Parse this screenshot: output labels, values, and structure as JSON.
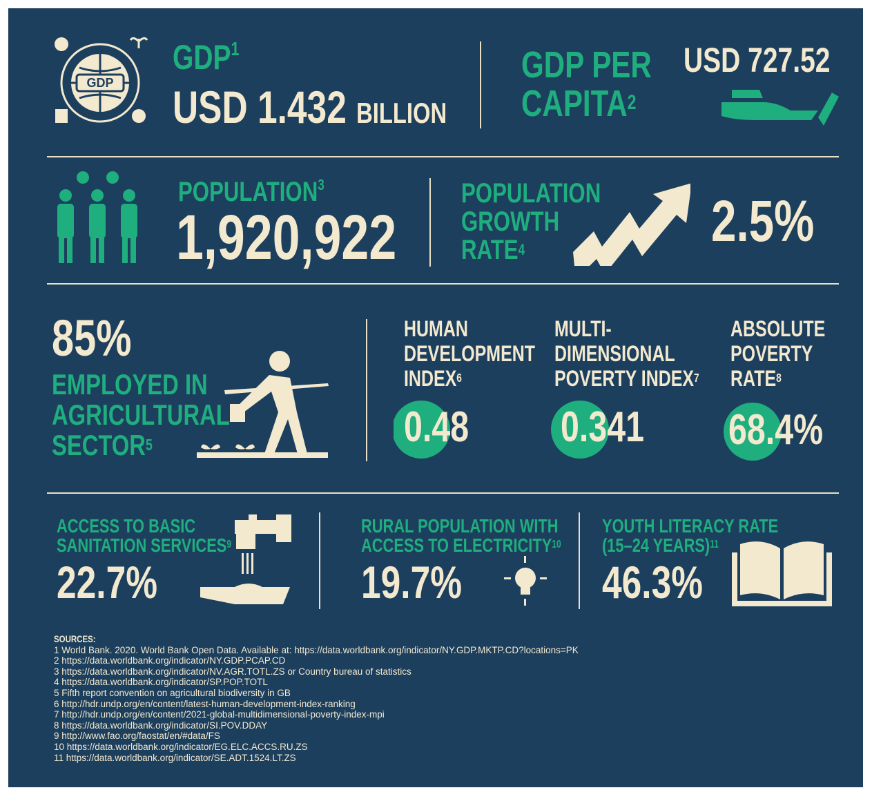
{
  "gdp": {
    "label": "GDP",
    "note": "1",
    "value": "USD 1.432",
    "unit": "BILLION"
  },
  "gdp_per_capita": {
    "label": [
      "GDP PER",
      "CAPITA"
    ],
    "note": "2",
    "value": "USD 727.52"
  },
  "population": {
    "label": "POPULATION",
    "note": "3",
    "value": "1,920,922"
  },
  "population_growth": {
    "label": [
      "POPULATION",
      "GROWTH",
      "RATE"
    ],
    "note": "4",
    "value": "2.5%"
  },
  "agriculture": {
    "value": "85%",
    "label": [
      "EMPLOYED IN",
      "AGRICULTURAL",
      "SECTOR"
    ],
    "note": "5"
  },
  "hdi": {
    "label": [
      "HUMAN",
      "DEVELOPMENT",
      "INDEX"
    ],
    "note": "6",
    "value": "0.48"
  },
  "mpi": {
    "label": [
      "MULTI-",
      "DIMENSIONAL",
      "POVERTY INDEX"
    ],
    "note": "7",
    "value": "0.341"
  },
  "poverty": {
    "label": [
      "ABSOLUTE",
      "POVERTY",
      "RATE"
    ],
    "note": "8",
    "value": "68.4%"
  },
  "sanitation": {
    "label": [
      "ACCESS TO BASIC",
      "SANITATION SERVICES"
    ],
    "note": "9",
    "value": "22.7%"
  },
  "electricity": {
    "label": [
      "RURAL POPULATION WITH",
      "ACCESS TO ELECTRICITY"
    ],
    "note": "10",
    "value": "19.7%"
  },
  "literacy": {
    "label": [
      "YOUTH LITERACY RATE",
      "(15–24 YEARS)"
    ],
    "note": "11",
    "value": "46.3%"
  },
  "sources": {
    "title": "SOURCES:",
    "items": [
      "1 World Bank. 2020. World Bank Open Data. Available at: https://data.worldbank.org/indicator/NY.GDP.MKTP.CD?locations=PK",
      "2 https://data.worldbank.org/indicator/NY.GDP.PCAP.CD",
      "3 https://data.worldbank.org/indicator/NV.AGR.TOTL.ZS or Country bureau of statistics",
      "4 https://data.worldbank.org/indicator/SP.POP.TOTL",
      "5 Fifth report convention on agricultural biodiversity in GB",
      "6 http://hdr.undp.org/en/content/latest-human-development-index-ranking",
      "7 http://hdr.undp.org/en/content/2021-global-multidimensional-poverty-index-mpi",
      "8 https://data.worldbank.org/indicator/SI.POV.DDAY",
      "9 http://www.fao.org/faostat/en/#data/FS",
      "10 https://data.worldbank.org/indicator/EG.ELC.ACCS.RU.ZS",
      "11 https://data.worldbank.org/indicator/SE.ADT.1524.LT.ZS"
    ]
  }
}
